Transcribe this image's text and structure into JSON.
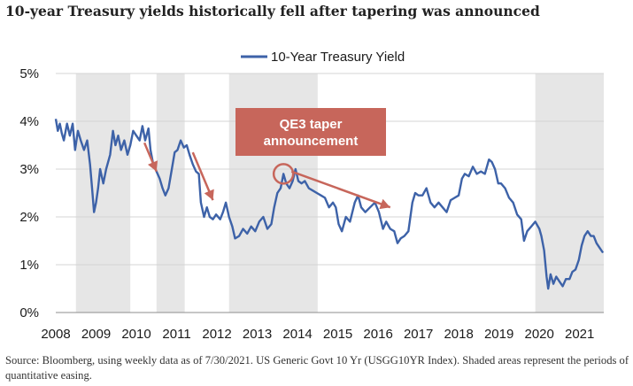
{
  "title": "10-year Treasury yields historically fell after tapering was announced",
  "source_note": "Source: Bloomberg, using weekly data as of 7/30/2021. US Generic Govt 10 Yr (USGG10YR Index). Shaded areas represent the periods of quantitative easing.",
  "chart_data": {
    "type": "line",
    "title": "10-year Treasury yields historically fell after tapering was announced",
    "xlabel": "",
    "ylabel": "",
    "xlim": [
      2008.0,
      2021.6
    ],
    "ylim": [
      0,
      5
    ],
    "x_tick_labels": [
      "2008",
      "2009",
      "2010",
      "2011",
      "2012",
      "2013",
      "2014",
      "2015",
      "2016",
      "2017",
      "2018",
      "2019",
      "2020",
      "2021"
    ],
    "y_tick_labels": [
      "0%",
      "1%",
      "2%",
      "3%",
      "4%",
      "5%"
    ],
    "y_tick_values": [
      0,
      1,
      2,
      3,
      4,
      5
    ],
    "grid": "horizontal",
    "legend_position": "top-center",
    "shaded_periods": [
      [
        2008.5,
        2009.85
      ],
      [
        2010.5,
        2011.2
      ],
      [
        2012.3,
        2014.5
      ],
      [
        2019.9,
        2021.6
      ]
    ],
    "series": [
      {
        "name": "10-Year Treasury Yield",
        "color": "#3d62a8",
        "points": [
          [
            2008.0,
            4.05
          ],
          [
            2008.05,
            3.8
          ],
          [
            2008.1,
            3.95
          ],
          [
            2008.15,
            3.75
          ],
          [
            2008.2,
            3.6
          ],
          [
            2008.28,
            3.95
          ],
          [
            2008.35,
            3.7
          ],
          [
            2008.42,
            3.95
          ],
          [
            2008.48,
            3.4
          ],
          [
            2008.55,
            3.8
          ],
          [
            2008.62,
            3.6
          ],
          [
            2008.7,
            3.4
          ],
          [
            2008.78,
            3.6
          ],
          [
            2008.85,
            3.1
          ],
          [
            2008.9,
            2.6
          ],
          [
            2008.95,
            2.1
          ],
          [
            2009.0,
            2.3
          ],
          [
            2009.05,
            2.6
          ],
          [
            2009.1,
            3.0
          ],
          [
            2009.18,
            2.7
          ],
          [
            2009.25,
            3.0
          ],
          [
            2009.35,
            3.3
          ],
          [
            2009.42,
            3.8
          ],
          [
            2009.48,
            3.5
          ],
          [
            2009.55,
            3.7
          ],
          [
            2009.62,
            3.4
          ],
          [
            2009.7,
            3.6
          ],
          [
            2009.78,
            3.3
          ],
          [
            2009.85,
            3.5
          ],
          [
            2009.92,
            3.8
          ],
          [
            2010.0,
            3.7
          ],
          [
            2010.08,
            3.6
          ],
          [
            2010.15,
            3.9
          ],
          [
            2010.22,
            3.6
          ],
          [
            2010.3,
            3.85
          ],
          [
            2010.35,
            3.4
          ],
          [
            2010.42,
            3.1
          ],
          [
            2010.5,
            2.95
          ],
          [
            2010.58,
            2.8
          ],
          [
            2010.65,
            2.6
          ],
          [
            2010.72,
            2.45
          ],
          [
            2010.8,
            2.6
          ],
          [
            2010.88,
            3.0
          ],
          [
            2010.95,
            3.35
          ],
          [
            2011.02,
            3.4
          ],
          [
            2011.1,
            3.6
          ],
          [
            2011.18,
            3.45
          ],
          [
            2011.25,
            3.5
          ],
          [
            2011.32,
            3.3
          ],
          [
            2011.4,
            3.1
          ],
          [
            2011.48,
            2.95
          ],
          [
            2011.55,
            2.9
          ],
          [
            2011.6,
            2.3
          ],
          [
            2011.68,
            2.0
          ],
          [
            2011.75,
            2.2
          ],
          [
            2011.82,
            2.0
          ],
          [
            2011.9,
            1.95
          ],
          [
            2011.98,
            2.05
          ],
          [
            2012.08,
            1.95
          ],
          [
            2012.15,
            2.1
          ],
          [
            2012.22,
            2.3
          ],
          [
            2012.3,
            2.0
          ],
          [
            2012.38,
            1.8
          ],
          [
            2012.45,
            1.55
          ],
          [
            2012.55,
            1.6
          ],
          [
            2012.65,
            1.75
          ],
          [
            2012.75,
            1.65
          ],
          [
            2012.85,
            1.8
          ],
          [
            2012.95,
            1.7
          ],
          [
            2013.05,
            1.9
          ],
          [
            2013.15,
            2.0
          ],
          [
            2013.25,
            1.75
          ],
          [
            2013.35,
            1.85
          ],
          [
            2013.42,
            2.2
          ],
          [
            2013.5,
            2.5
          ],
          [
            2013.58,
            2.6
          ],
          [
            2013.65,
            2.9
          ],
          [
            2013.72,
            2.7
          ],
          [
            2013.8,
            2.6
          ],
          [
            2013.88,
            2.75
          ],
          [
            2013.95,
            3.0
          ],
          [
            2014.02,
            2.75
          ],
          [
            2014.1,
            2.7
          ],
          [
            2014.18,
            2.75
          ],
          [
            2014.28,
            2.6
          ],
          [
            2014.38,
            2.55
          ],
          [
            2014.48,
            2.5
          ],
          [
            2014.58,
            2.45
          ],
          [
            2014.68,
            2.4
          ],
          [
            2014.78,
            2.2
          ],
          [
            2014.88,
            2.3
          ],
          [
            2014.95,
            2.2
          ],
          [
            2015.02,
            1.85
          ],
          [
            2015.1,
            1.7
          ],
          [
            2015.2,
            2.0
          ],
          [
            2015.3,
            1.9
          ],
          [
            2015.42,
            2.3
          ],
          [
            2015.5,
            2.45
          ],
          [
            2015.58,
            2.2
          ],
          [
            2015.68,
            2.1
          ],
          [
            2015.8,
            2.2
          ],
          [
            2015.92,
            2.3
          ],
          [
            2016.02,
            2.1
          ],
          [
            2016.12,
            1.75
          ],
          [
            2016.2,
            1.9
          ],
          [
            2016.3,
            1.75
          ],
          [
            2016.4,
            1.7
          ],
          [
            2016.48,
            1.45
          ],
          [
            2016.56,
            1.55
          ],
          [
            2016.65,
            1.6
          ],
          [
            2016.75,
            1.7
          ],
          [
            2016.85,
            2.3
          ],
          [
            2016.92,
            2.5
          ],
          [
            2017.0,
            2.45
          ],
          [
            2017.1,
            2.45
          ],
          [
            2017.2,
            2.6
          ],
          [
            2017.3,
            2.3
          ],
          [
            2017.4,
            2.2
          ],
          [
            2017.5,
            2.3
          ],
          [
            2017.6,
            2.2
          ],
          [
            2017.7,
            2.1
          ],
          [
            2017.8,
            2.35
          ],
          [
            2017.9,
            2.4
          ],
          [
            2018.0,
            2.45
          ],
          [
            2018.08,
            2.8
          ],
          [
            2018.15,
            2.9
          ],
          [
            2018.25,
            2.85
          ],
          [
            2018.35,
            3.05
          ],
          [
            2018.45,
            2.9
          ],
          [
            2018.55,
            2.95
          ],
          [
            2018.65,
            2.9
          ],
          [
            2018.75,
            3.2
          ],
          [
            2018.82,
            3.15
          ],
          [
            2018.9,
            3.0
          ],
          [
            2018.98,
            2.7
          ],
          [
            2019.05,
            2.7
          ],
          [
            2019.15,
            2.6
          ],
          [
            2019.25,
            2.4
          ],
          [
            2019.35,
            2.3
          ],
          [
            2019.45,
            2.05
          ],
          [
            2019.55,
            1.95
          ],
          [
            2019.62,
            1.5
          ],
          [
            2019.7,
            1.7
          ],
          [
            2019.8,
            1.8
          ],
          [
            2019.9,
            1.9
          ],
          [
            2020.0,
            1.75
          ],
          [
            2020.05,
            1.6
          ],
          [
            2020.12,
            1.3
          ],
          [
            2020.18,
            0.75
          ],
          [
            2020.22,
            0.5
          ],
          [
            2020.28,
            0.8
          ],
          [
            2020.35,
            0.6
          ],
          [
            2020.42,
            0.75
          ],
          [
            2020.5,
            0.65
          ],
          [
            2020.58,
            0.55
          ],
          [
            2020.66,
            0.7
          ],
          [
            2020.75,
            0.7
          ],
          [
            2020.82,
            0.85
          ],
          [
            2020.9,
            0.9
          ],
          [
            2020.98,
            1.1
          ],
          [
            2021.05,
            1.4
          ],
          [
            2021.12,
            1.6
          ],
          [
            2021.2,
            1.7
          ],
          [
            2021.28,
            1.6
          ],
          [
            2021.35,
            1.6
          ],
          [
            2021.42,
            1.45
          ],
          [
            2021.5,
            1.35
          ],
          [
            2021.58,
            1.25
          ]
        ]
      }
    ],
    "annotations": [
      {
        "type": "callout",
        "text_line1": "QE3 taper",
        "text_line2": "announcement",
        "color": "#c7665b",
        "points_to_x": 2013.65,
        "points_to_y": 2.9
      }
    ],
    "arrows": [
      {
        "from": [
          2010.2,
          3.55
        ],
        "to": [
          2010.5,
          2.95
        ]
      },
      {
        "from": [
          2011.4,
          3.35
        ],
        "to": [
          2011.9,
          2.35
        ]
      },
      {
        "from": [
          2013.85,
          2.95
        ],
        "to": [
          2016.3,
          2.2
        ]
      }
    ]
  }
}
